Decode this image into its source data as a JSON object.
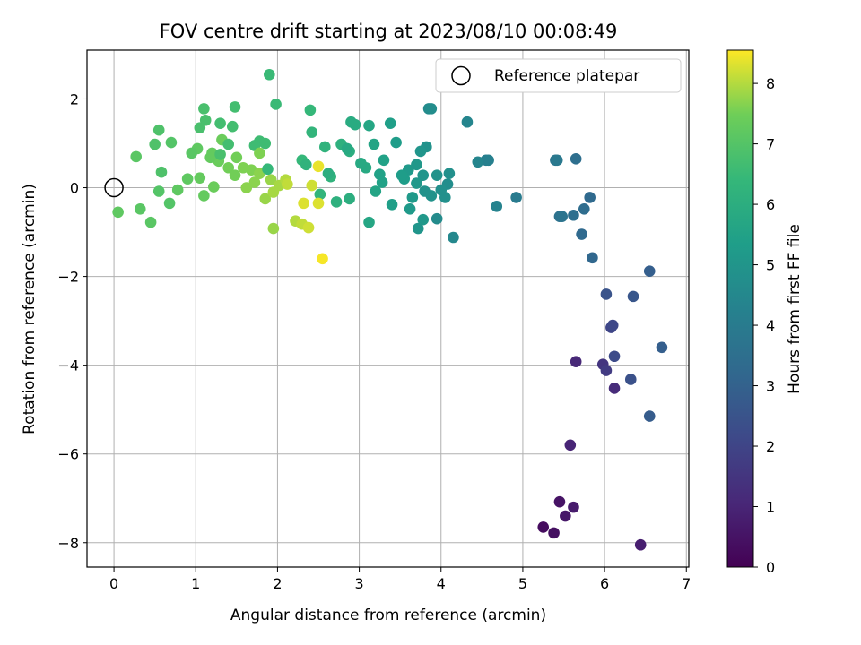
{
  "chart_data": {
    "type": "scatter",
    "title": "FOV centre drift starting at 2023/08/10 00:08:49",
    "xlabel": "Angular distance from reference (arcmin)",
    "ylabel": "Rotation from reference (arcmin)",
    "xlim": [
      -0.33,
      7.03
    ],
    "ylim": [
      -8.55,
      3.1
    ],
    "xticks": [
      0,
      1,
      2,
      3,
      4,
      5,
      6,
      7
    ],
    "yticks": [
      -8,
      -6,
      -4,
      -2,
      0,
      2
    ],
    "grid": true,
    "legend": {
      "placement": "top-right",
      "entries": [
        "Reference platepar"
      ]
    },
    "reference_point": {
      "x": 0,
      "y": 0,
      "label": "Reference platepar"
    },
    "colorbar": {
      "label": "Hours from first FF file",
      "colormap": "viridis",
      "range": [
        0,
        8.55
      ],
      "ticks": [
        0,
        1,
        2,
        3,
        4,
        5,
        6,
        7,
        8
      ]
    },
    "points": [
      [
        5.25,
        -7.65,
        0.3
      ],
      [
        5.38,
        -7.78,
        0.4
      ],
      [
        5.45,
        -7.08,
        0.5
      ],
      [
        5.52,
        -7.4,
        0.6
      ],
      [
        5.62,
        -7.2,
        0.7
      ],
      [
        6.44,
        -8.05,
        0.8
      ],
      [
        5.58,
        -5.8,
        1.0
      ],
      [
        5.65,
        -3.92,
        1.1
      ],
      [
        6.12,
        -4.52,
        1.2
      ],
      [
        5.98,
        -3.98,
        1.5
      ],
      [
        6.02,
        -4.12,
        1.7
      ],
      [
        6.08,
        -3.15,
        2.0
      ],
      [
        6.1,
        -3.1,
        2.1
      ],
      [
        6.12,
        -3.8,
        2.2
      ],
      [
        6.32,
        -4.32,
        2.4
      ],
      [
        6.02,
        -2.4,
        2.5
      ],
      [
        6.35,
        -2.45,
        2.6
      ],
      [
        6.55,
        -5.15,
        2.8
      ],
      [
        6.7,
        -3.6,
        2.9
      ],
      [
        6.55,
        -1.88,
        2.9
      ],
      [
        5.85,
        -1.58,
        3.2
      ],
      [
        5.72,
        -1.05,
        3.3
      ],
      [
        5.82,
        -0.22,
        3.3
      ],
      [
        5.75,
        -0.48,
        3.4
      ],
      [
        5.62,
        -0.62,
        3.5
      ],
      [
        5.65,
        0.65,
        3.5
      ],
      [
        5.45,
        -0.65,
        3.6
      ],
      [
        5.48,
        -0.65,
        3.7
      ],
      [
        5.4,
        0.62,
        3.8
      ],
      [
        5.42,
        0.62,
        3.9
      ],
      [
        4.92,
        -0.22,
        4.0
      ],
      [
        4.55,
        0.62,
        4.1
      ],
      [
        4.58,
        0.62,
        4.2
      ],
      [
        4.68,
        -0.42,
        4.3
      ],
      [
        4.32,
        1.48,
        4.4
      ],
      [
        4.45,
        0.58,
        4.4
      ],
      [
        4.15,
        -1.12,
        4.5
      ],
      [
        3.95,
        -0.7,
        4.6
      ],
      [
        3.85,
        1.78,
        4.6
      ],
      [
        3.88,
        1.78,
        4.7
      ],
      [
        4.08,
        0.08,
        4.7
      ],
      [
        4.1,
        0.32,
        4.8
      ],
      [
        4.05,
        -0.22,
        4.8
      ],
      [
        3.95,
        0.28,
        4.9
      ],
      [
        3.82,
        0.92,
        4.9
      ],
      [
        3.75,
        0.82,
        5.0
      ],
      [
        3.72,
        -0.92,
        5.0
      ],
      [
        3.78,
        -0.72,
        5.1
      ],
      [
        3.7,
        0.1,
        5.1
      ],
      [
        3.65,
        -0.22,
        5.2
      ],
      [
        3.6,
        0.4,
        5.2
      ],
      [
        3.55,
        0.2,
        5.3
      ],
      [
        3.45,
        1.02,
        5.3
      ],
      [
        3.38,
        1.45,
        5.4
      ],
      [
        3.4,
        -0.38,
        5.4
      ],
      [
        3.3,
        0.62,
        5.5
      ],
      [
        3.25,
        0.3,
        5.5
      ],
      [
        3.2,
        -0.08,
        5.6
      ],
      [
        3.18,
        0.98,
        5.6
      ],
      [
        3.12,
        1.4,
        5.7
      ],
      [
        3.12,
        -0.78,
        5.7
      ],
      [
        3.08,
        0.45,
        5.8
      ],
      [
        3.02,
        0.55,
        5.8
      ],
      [
        2.95,
        1.42,
        5.9
      ],
      [
        2.9,
        1.48,
        5.9
      ],
      [
        2.88,
        0.82,
        6.0
      ],
      [
        2.88,
        -0.25,
        6.0
      ],
      [
        2.78,
        0.98,
        6.1
      ],
      [
        2.72,
        -0.32,
        6.1
      ],
      [
        2.65,
        0.25,
        6.2
      ],
      [
        2.58,
        0.92,
        6.2
      ],
      [
        2.52,
        -0.15,
        6.3
      ],
      [
        2.42,
        1.25,
        6.3
      ],
      [
        2.4,
        1.75,
        6.4
      ],
      [
        2.3,
        0.62,
        6.4
      ],
      [
        1.98,
        1.88,
        6.5
      ],
      [
        1.9,
        2.55,
        6.5
      ],
      [
        1.85,
        1.0,
        6.6
      ],
      [
        1.78,
        1.05,
        6.6
      ],
      [
        1.72,
        0.95,
        6.6
      ],
      [
        1.48,
        1.82,
        6.7
      ],
      [
        1.45,
        1.38,
        6.7
      ],
      [
        1.3,
        1.45,
        6.7
      ],
      [
        1.1,
        1.78,
        6.8
      ],
      [
        1.12,
        1.52,
        6.8
      ],
      [
        1.05,
        1.35,
        6.8
      ],
      [
        0.55,
        1.3,
        6.9
      ],
      [
        0.5,
        0.98,
        6.9
      ],
      [
        0.58,
        0.35,
        6.9
      ],
      [
        0.55,
        -0.08,
        7.0
      ],
      [
        0.68,
        -0.35,
        7.0
      ],
      [
        0.7,
        1.02,
        7.0
      ],
      [
        0.45,
        -0.78,
        7.1
      ],
      [
        0.27,
        0.7,
        7.1
      ],
      [
        0.32,
        -0.48,
        7.1
      ],
      [
        0.05,
        -0.55,
        7.2
      ],
      [
        0.78,
        -0.05,
        7.2
      ],
      [
        1.02,
        0.88,
        7.2
      ],
      [
        1.05,
        0.22,
        7.3
      ],
      [
        1.1,
        -0.18,
        7.3
      ],
      [
        1.2,
        0.78,
        7.3
      ],
      [
        1.22,
        0.02,
        7.4
      ],
      [
        1.28,
        0.6,
        7.4
      ],
      [
        1.32,
        1.08,
        7.4
      ],
      [
        1.4,
        0.45,
        7.5
      ],
      [
        1.48,
        0.28,
        7.5
      ],
      [
        1.5,
        0.68,
        7.5
      ],
      [
        1.58,
        0.45,
        7.6
      ],
      [
        1.68,
        0.4,
        7.6
      ],
      [
        1.72,
        0.12,
        7.7
      ],
      [
        1.78,
        0.32,
        7.7
      ],
      [
        1.85,
        -0.25,
        7.8
      ],
      [
        1.92,
        0.18,
        7.8
      ],
      [
        1.95,
        -0.1,
        7.9
      ],
      [
        2.02,
        0.05,
        7.9
      ],
      [
        2.1,
        0.18,
        8.0
      ],
      [
        2.22,
        -0.75,
        8.0
      ],
      [
        2.3,
        -0.82,
        8.1
      ],
      [
        2.38,
        -0.9,
        8.2
      ],
      [
        2.5,
        -0.35,
        8.3
      ],
      [
        2.5,
        0.48,
        8.4
      ],
      [
        2.55,
        -1.6,
        8.5
      ],
      [
        1.95,
        -0.92,
        7.8
      ],
      [
        1.78,
        0.78,
        7.6
      ],
      [
        1.62,
        0.0,
        7.7
      ],
      [
        2.12,
        0.08,
        8.1
      ],
      [
        2.42,
        0.05,
        8.2
      ],
      [
        2.32,
        -0.35,
        8.3
      ],
      [
        0.9,
        0.2,
        7.2
      ],
      [
        1.18,
        0.68,
        7.3
      ],
      [
        0.95,
        0.78,
        7.1
      ],
      [
        1.4,
        0.98,
        6.7
      ],
      [
        1.3,
        0.75,
        6.8
      ],
      [
        1.88,
        0.42,
        6.4
      ],
      [
        2.35,
        0.52,
        6.2
      ],
      [
        2.62,
        0.32,
        6.0
      ],
      [
        2.85,
        0.88,
        5.8
      ],
      [
        3.28,
        0.12,
        5.5
      ],
      [
        3.52,
        0.28,
        5.3
      ],
      [
        3.78,
        0.28,
        5.0
      ],
      [
        3.8,
        -0.08,
        4.9
      ],
      [
        3.62,
        -0.48,
        5.2
      ],
      [
        3.88,
        -0.18,
        4.9
      ],
      [
        3.7,
        0.52,
        5.1
      ],
      [
        4.0,
        -0.05,
        4.8
      ]
    ]
  }
}
